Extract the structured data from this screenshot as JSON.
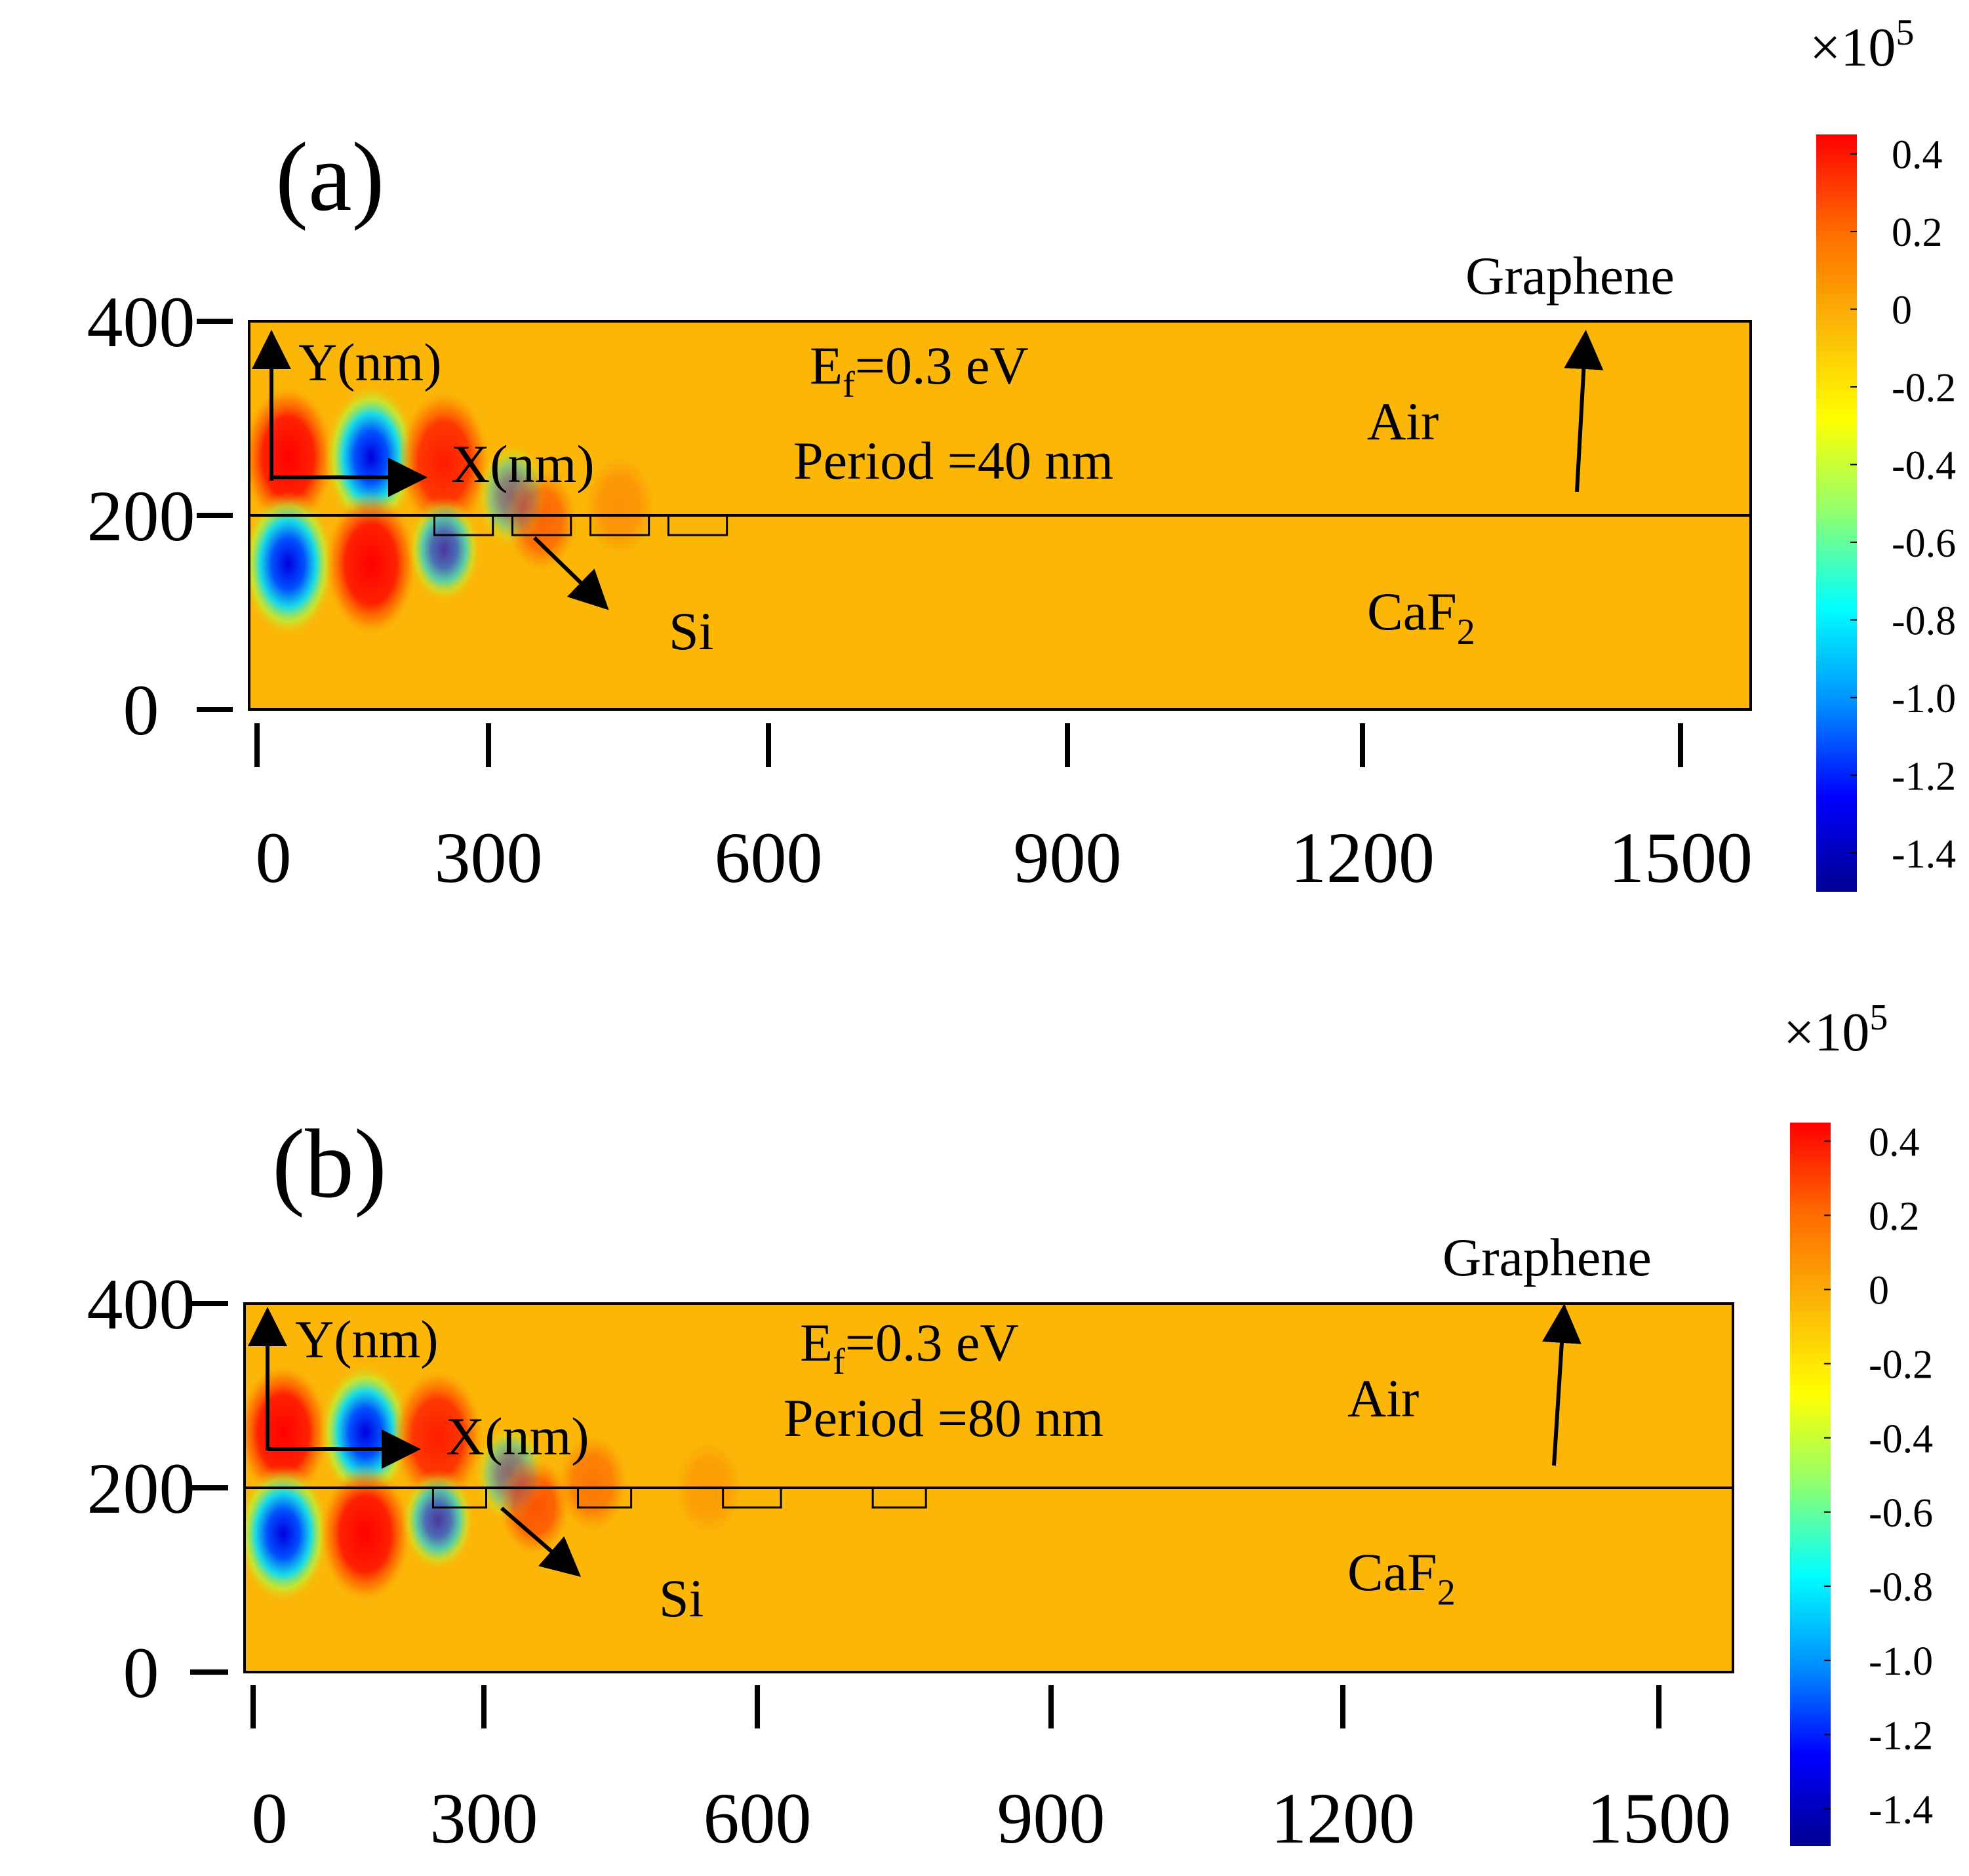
{
  "colors": {
    "background_field": "#fbb607",
    "colormap": [
      "#000090",
      "#0000ff",
      "#0090ff",
      "#00ffff",
      "#90ff70",
      "#ffff00",
      "#fbb607",
      "#ff6a00",
      "#ff0000"
    ]
  },
  "chart_data": [
    {
      "type": "heatmap",
      "panel_label": "(a)",
      "description_lines": [
        "E",
        "f",
        "=0.3 eV"
      ],
      "ef_label": {
        "main": "E",
        "sub": "f",
        "rest": "=0.3 eV"
      },
      "period_label": "Period =40 nm",
      "axis_label_y": "Y(nm)",
      "axis_label_x": "X(nm)",
      "region_labels": {
        "top": "Air",
        "bottom_main": "CaF",
        "bottom_sub": "2",
        "graphene": "Graphene",
        "grating": "Si"
      },
      "x_ticks": [
        "0",
        "300",
        "600",
        "900",
        "1200",
        "1500"
      ],
      "x_tick_values": [
        0,
        300,
        600,
        900,
        1200,
        1500
      ],
      "y_ticks": [
        "400",
        "200",
        "0"
      ],
      "y_tick_values": [
        400,
        200,
        0
      ],
      "xlim": [
        0,
        1540
      ],
      "ylim": [
        0,
        400
      ],
      "graphene_y": 200,
      "grating_period_nm": 40,
      "si_blocks_x_nm": [
        [
          190,
          250
        ],
        [
          270,
          330
        ],
        [
          350,
          410
        ],
        [
          430,
          490
        ]
      ],
      "field_lobes": [
        {
          "x": 40,
          "y": 260,
          "sign": 1,
          "strength": 1.0
        },
        {
          "x": 40,
          "y": 150,
          "sign": -1,
          "strength": 1.0
        },
        {
          "x": 125,
          "y": 260,
          "sign": -1,
          "strength": 1.0
        },
        {
          "x": 125,
          "y": 150,
          "sign": 1,
          "strength": 1.0
        },
        {
          "x": 200,
          "y": 255,
          "sign": 1,
          "strength": 0.85
        },
        {
          "x": 200,
          "y": 165,
          "sign": -1,
          "strength": 0.7
        },
        {
          "x": 270,
          "y": 220,
          "sign": -1,
          "strength": 0.45
        },
        {
          "x": 300,
          "y": 195,
          "sign": 1,
          "strength": 0.45
        },
        {
          "x": 380,
          "y": 210,
          "sign": 1,
          "strength": 0.2
        }
      ],
      "colorbar": {
        "multiplier_prefix": "×10",
        "multiplier_exp": "5",
        "ticks": [
          "0.4",
          "0.2",
          "0",
          "-0.2",
          "-0.4",
          "-0.6",
          "-0.8",
          "-1.0",
          "-1.2",
          "-1.4"
        ],
        "tick_values": [
          0.4,
          0.2,
          0,
          -0.2,
          -0.4,
          -0.6,
          -0.8,
          -1.0,
          -1.2,
          -1.4
        ],
        "range": [
          -1.5,
          0.45
        ]
      }
    },
    {
      "type": "heatmap",
      "panel_label": "(b)",
      "ef_label": {
        "main": "E",
        "sub": "f",
        "rest": "=0.3 eV"
      },
      "period_label": "Period =80 nm",
      "axis_label_y": "Y(nm)",
      "axis_label_x": "X(nm)",
      "region_labels": {
        "top": "Air",
        "bottom_main": "CaF",
        "bottom_sub": "2",
        "graphene": "Graphene",
        "grating": "Si"
      },
      "x_ticks": [
        "0",
        "300",
        "600",
        "900",
        "1200",
        "1500"
      ],
      "x_tick_values": [
        0,
        300,
        600,
        900,
        1200,
        1500
      ],
      "y_ticks": [
        "400",
        "200",
        "0"
      ],
      "y_tick_values": [
        400,
        200,
        0
      ],
      "xlim": [
        0,
        1540
      ],
      "ylim": [
        0,
        400
      ],
      "graphene_y": 200,
      "grating_period_nm": 80,
      "si_blocks_x_nm": [
        [
          195,
          250
        ],
        [
          345,
          400
        ],
        [
          495,
          555
        ],
        [
          650,
          705
        ]
      ],
      "field_lobes": [
        {
          "x": 40,
          "y": 260,
          "sign": 1,
          "strength": 1.0
        },
        {
          "x": 40,
          "y": 150,
          "sign": -1,
          "strength": 1.0
        },
        {
          "x": 125,
          "y": 260,
          "sign": -1,
          "strength": 1.0
        },
        {
          "x": 125,
          "y": 150,
          "sign": 1,
          "strength": 1.0
        },
        {
          "x": 200,
          "y": 255,
          "sign": 1,
          "strength": 0.85
        },
        {
          "x": 200,
          "y": 165,
          "sign": -1,
          "strength": 0.7
        },
        {
          "x": 275,
          "y": 215,
          "sign": -1,
          "strength": 0.45
        },
        {
          "x": 300,
          "y": 180,
          "sign": 1,
          "strength": 0.55
        },
        {
          "x": 360,
          "y": 205,
          "sign": 1,
          "strength": 0.35
        },
        {
          "x": 480,
          "y": 200,
          "sign": 1,
          "strength": 0.15
        }
      ],
      "colorbar": {
        "multiplier_prefix": "×10",
        "multiplier_exp": "5",
        "ticks": [
          "0.4",
          "0.2",
          "0",
          "-0.2",
          "-0.4",
          "-0.6",
          "-0.8",
          "-1.0",
          "-1.2",
          "-1.4"
        ],
        "tick_values": [
          0.4,
          0.2,
          0,
          -0.2,
          -0.4,
          -0.6,
          -0.8,
          -1.0,
          -1.2,
          -1.4
        ],
        "range": [
          -1.5,
          0.45
        ]
      }
    }
  ]
}
